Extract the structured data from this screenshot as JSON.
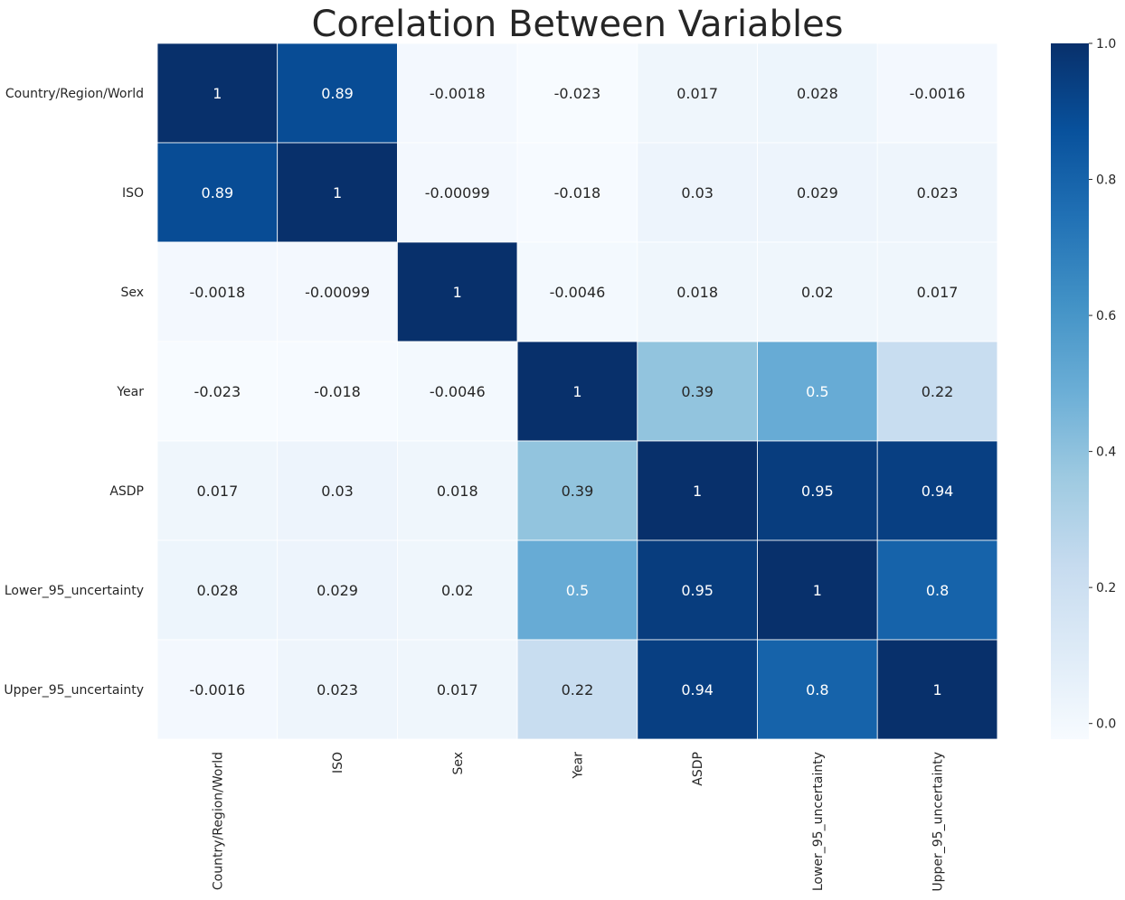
{
  "chart_data": {
    "type": "heatmap",
    "title": "Corelation Between Variables",
    "xlabel": "",
    "ylabel": "",
    "rows": [
      "Country/Region/World",
      "ISO",
      "Sex",
      "Year",
      "ASDP",
      "Lower_95_uncertainty",
      "Upper_95_uncertainty"
    ],
    "columns": [
      "Country/Region/World",
      "ISO",
      "Sex",
      "Year",
      "ASDP",
      "Lower_95_uncertainty",
      "Upper_95_uncertainty"
    ],
    "values": [
      [
        1,
        0.89,
        -0.0018,
        -0.023,
        0.017,
        0.028,
        -0.0016
      ],
      [
        0.89,
        1,
        -0.00099,
        -0.018,
        0.03,
        0.029,
        0.023
      ],
      [
        -0.0018,
        -0.00099,
        1,
        -0.0046,
        0.018,
        0.02,
        0.017
      ],
      [
        -0.023,
        -0.018,
        -0.0046,
        1,
        0.39,
        0.5,
        0.22
      ],
      [
        0.017,
        0.03,
        0.018,
        0.39,
        1,
        0.95,
        0.94
      ],
      [
        0.028,
        0.029,
        0.02,
        0.5,
        0.95,
        1,
        0.8
      ],
      [
        -0.0016,
        0.023,
        0.017,
        0.22,
        0.94,
        0.8,
        1
      ]
    ],
    "annotations": [
      [
        "1",
        "0.89",
        "-0.0018",
        "-0.023",
        "0.017",
        "0.028",
        "-0.0016"
      ],
      [
        "0.89",
        "1",
        "-0.00099",
        "-0.018",
        "0.03",
        "0.029",
        "0.023"
      ],
      [
        "-0.0018",
        "-0.00099",
        "1",
        "-0.0046",
        "0.018",
        "0.02",
        "0.017"
      ],
      [
        "-0.023",
        "-0.018",
        "-0.0046",
        "1",
        "0.39",
        "0.5",
        "0.22"
      ],
      [
        "0.017",
        "0.03",
        "0.018",
        "0.39",
        "1",
        "0.95",
        "0.94"
      ],
      [
        "0.028",
        "0.029",
        "0.02",
        "0.5",
        "0.95",
        "1",
        "0.8"
      ],
      [
        "-0.0016",
        "0.023",
        "0.017",
        "0.22",
        "0.94",
        "0.8",
        "1"
      ]
    ],
    "colormap": "Blues",
    "colorbar": {
      "range": [
        -0.023,
        1
      ],
      "ticks": [
        0.0,
        0.2,
        0.4,
        0.6,
        0.8,
        1.0
      ],
      "tick_labels": [
        "0.0",
        "0.2",
        "0.4",
        "0.6",
        "0.8",
        "1.0"
      ]
    },
    "grid": false,
    "colors": {
      "low": "#f7fbff",
      "mid": "#6baed6",
      "high": "#08306b",
      "text_dark": "#262626",
      "text_light": "#ffffff"
    }
  }
}
